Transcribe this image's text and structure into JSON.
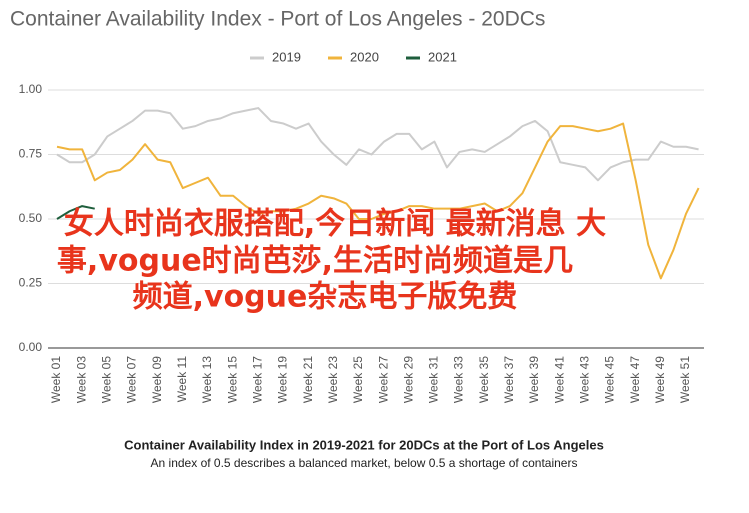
{
  "chart_data": {
    "type": "line",
    "title": "Container Availability Index - Port of Los Angeles - 20DCs",
    "caption": "Container Availability Index in 2019-2021 for 20DCs at the Port of Los Angeles",
    "subcaption": "An index of 0.5 describes a balanced market, below 0.5 a shortage of containers",
    "annotations": [
      "女人时尚衣服搭配,今日新闻 最新消息 大",
      "事,vogue时尚芭莎,生活时尚频道是几",
      "频道,vogue杂志电子版免费"
    ],
    "categories": [
      "Week 01",
      null,
      "Week 03",
      null,
      "Week 05",
      null,
      "Week 07",
      null,
      "Week 09",
      null,
      "Week 11",
      null,
      "Week 13",
      null,
      "Week 15",
      null,
      "Week 17",
      null,
      "Week 19",
      null,
      "Week 21",
      null,
      "Week 23",
      null,
      "Week 25",
      null,
      "Week 27",
      null,
      "Week 29",
      null,
      "Week 31",
      null,
      "Week 33",
      null,
      "Week 35",
      null,
      "Week 37",
      null,
      "Week 39",
      null,
      "Week 41",
      null,
      "Week 43",
      null,
      "Week 45",
      null,
      "Week 47",
      null,
      "Week 49",
      null,
      "Week 51",
      null
    ],
    "series": [
      {
        "name": "2019",
        "color": "#cccccc",
        "values": [
          0.75,
          0.72,
          0.72,
          0.75,
          0.82,
          0.85,
          0.88,
          0.92,
          0.92,
          0.91,
          0.85,
          0.86,
          0.88,
          0.89,
          0.91,
          0.92,
          0.93,
          0.88,
          0.87,
          0.85,
          0.87,
          0.8,
          0.75,
          0.71,
          0.77,
          0.75,
          0.8,
          0.83,
          0.83,
          0.77,
          0.8,
          0.7,
          0.76,
          0.77,
          0.76,
          0.79,
          0.82,
          0.86,
          0.88,
          0.84,
          0.72,
          0.71,
          0.7,
          0.65,
          0.7,
          0.72,
          0.73,
          0.73,
          0.8,
          0.78,
          0.78,
          0.77
        ]
      },
      {
        "name": "2020",
        "color": "#f0b43c",
        "values": [
          0.78,
          0.77,
          0.77,
          0.65,
          0.68,
          0.69,
          0.73,
          0.79,
          0.73,
          0.72,
          0.62,
          0.64,
          0.66,
          0.59,
          0.59,
          0.55,
          0.52,
          0.53,
          0.53,
          0.54,
          0.56,
          0.59,
          0.58,
          0.56,
          0.5,
          0.5,
          0.52,
          0.53,
          0.55,
          0.55,
          0.54,
          0.54,
          0.54,
          0.55,
          0.56,
          0.53,
          0.55,
          0.6,
          0.7,
          0.8,
          0.86,
          0.86,
          0.85,
          0.84,
          0.85,
          0.87,
          0.65,
          0.4,
          0.27,
          0.38,
          0.52,
          0.62
        ]
      },
      {
        "name": "2021",
        "color": "#1e5e3c",
        "values": [
          0.5,
          0.53,
          0.55,
          0.54,
          null,
          null,
          null,
          null,
          null,
          null,
          null,
          null,
          null,
          null,
          null,
          null,
          null,
          null,
          null,
          null,
          null,
          null,
          null,
          null,
          null,
          null,
          null,
          null,
          null,
          null,
          null,
          null,
          null,
          null,
          null,
          null,
          null,
          null,
          null,
          null,
          null,
          null,
          null,
          null,
          null,
          null,
          null,
          null,
          null,
          null,
          null,
          null
        ]
      }
    ],
    "ylim": [
      0,
      1
    ],
    "yticks": [
      {
        "value": 0,
        "label": "0.00"
      },
      {
        "value": 0.25,
        "label": "0.25"
      },
      {
        "value": 0.5,
        "label": "0.50"
      },
      {
        "value": 0.75,
        "label": "0.75"
      },
      {
        "value": 1,
        "label": "1.00"
      }
    ],
    "grid": true,
    "legend": "top"
  }
}
